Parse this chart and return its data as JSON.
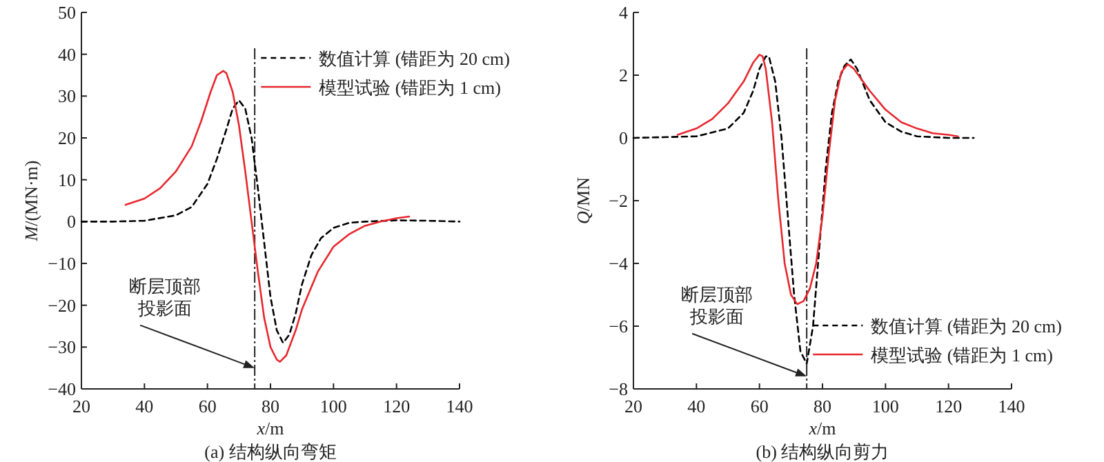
{
  "chart_data": [
    {
      "type": "line",
      "title": "(a) 结构纵向弯矩",
      "xlabel": "*x*/m",
      "ylabel": "*M*/(MN·m)",
      "xlim": [
        20,
        140
      ],
      "ylim": [
        -40,
        50
      ],
      "xticks": [
        20,
        40,
        60,
        80,
        100,
        120,
        140
      ],
      "yticks": [
        -40,
        -30,
        -20,
        -10,
        0,
        10,
        20,
        30,
        40,
        50
      ],
      "legend": "top right",
      "ref_lines": [
        {
          "axis": "x",
          "value": 75
        }
      ],
      "annotations": [
        {
          "text": "断层顶部投影面",
          "x": 75,
          "y": -35
        }
      ],
      "series": [
        {
          "name": "数值计算 (错距为 20 cm)",
          "color": "#000000",
          "line_style": "dashed",
          "x": [
            20,
            30,
            40,
            50,
            55,
            60,
            63,
            66,
            68,
            70,
            72,
            74,
            76,
            78,
            80,
            82,
            84,
            86,
            88,
            90,
            93,
            96,
            100,
            105,
            110,
            120,
            130,
            140
          ],
          "values": [
            0,
            0,
            0.2,
            1.5,
            3.5,
            9,
            15,
            22,
            27,
            29,
            27,
            20,
            8,
            -5,
            -18,
            -26,
            -29,
            -27,
            -22,
            -15,
            -8,
            -4,
            -1.5,
            -0.3,
            0,
            0.3,
            0.2,
            0
          ]
        },
        {
          "name": "模型试验 (错距为 1 cm)",
          "color": "#e8262d",
          "line_style": "solid",
          "x": [
            34,
            40,
            45,
            50,
            55,
            58,
            61,
            63,
            65,
            66,
            68,
            70,
            72,
            74,
            76,
            78,
            80,
            82,
            83,
            85,
            88,
            90,
            95,
            100,
            105,
            110,
            115,
            120,
            124
          ],
          "values": [
            4,
            5.5,
            8,
            12,
            18,
            24,
            31,
            35,
            36,
            35.5,
            31,
            23,
            12,
            0,
            -12,
            -23,
            -30,
            -33,
            -33.5,
            -32,
            -26,
            -21,
            -12,
            -6,
            -3,
            -1,
            0,
            0.8,
            1.2
          ]
        }
      ]
    },
    {
      "type": "line",
      "title": "(b) 结构纵向剪力",
      "xlabel": "*x*/m",
      "ylabel": "*Q*/MN",
      "xlim": [
        20,
        140
      ],
      "ylim": [
        -8,
        4
      ],
      "xticks": [
        20,
        40,
        60,
        80,
        100,
        120,
        140
      ],
      "yticks": [
        -8,
        -6,
        -4,
        -2,
        0,
        2,
        4
      ],
      "legend": "bottom right",
      "ref_lines": [
        {
          "axis": "x",
          "value": 75
        }
      ],
      "annotations": [
        {
          "text": "断层顶部投影面",
          "x": 75,
          "y": -7.6
        }
      ],
      "series": [
        {
          "name": "数值计算 (错距为 20 cm)",
          "color": "#000000",
          "line_style": "dashed",
          "x": [
            20,
            40,
            50,
            55,
            58,
            60,
            62,
            63,
            65,
            67,
            69,
            71,
            73,
            75,
            77,
            79,
            81,
            83,
            85,
            87,
            89,
            91,
            95,
            100,
            105,
            110,
            120,
            128
          ],
          "values": [
            0,
            0.05,
            0.3,
            0.8,
            1.5,
            2.2,
            2.6,
            2.6,
            1.8,
            0,
            -2.5,
            -5,
            -6.8,
            -7.2,
            -6,
            -3.5,
            -1,
            0.8,
            1.8,
            2.3,
            2.5,
            2.2,
            1.2,
            0.5,
            0.2,
            0.05,
            0,
            0
          ]
        },
        {
          "name": "模型试验 (错距为 1 cm)",
          "color": "#e8262d",
          "line_style": "solid",
          "x": [
            34,
            40,
            45,
            50,
            55,
            58,
            60,
            61,
            62,
            64,
            66,
            68,
            70,
            72,
            74,
            76,
            78,
            80,
            82,
            84,
            86,
            88,
            90,
            95,
            100,
            105,
            110,
            115,
            120,
            123
          ],
          "values": [
            0.1,
            0.3,
            0.6,
            1.1,
            1.8,
            2.4,
            2.65,
            2.6,
            2.2,
            0.5,
            -2,
            -4,
            -5,
            -5.3,
            -5.2,
            -4.8,
            -4,
            -2.5,
            -0.5,
            1.2,
            2.1,
            2.35,
            2.2,
            1.5,
            0.9,
            0.5,
            0.3,
            0.15,
            0.1,
            0.05
          ]
        }
      ]
    }
  ]
}
